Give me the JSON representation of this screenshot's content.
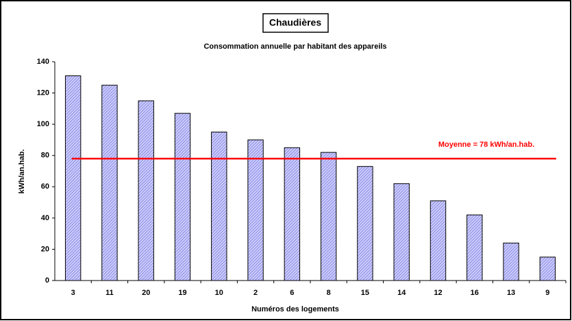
{
  "chart_data": {
    "type": "bar",
    "title": "Chaudières",
    "subtitle": "Consommation annuelle par habitant des appareils",
    "x_label": "Numéros des logements",
    "y_label": "kWh/an.hab.",
    "categories": [
      "3",
      "11",
      "20",
      "19",
      "10",
      "2",
      "6",
      "8",
      "15",
      "14",
      "12",
      "16",
      "13",
      "9"
    ],
    "values": [
      131,
      125,
      115,
      107,
      95,
      90,
      85,
      82,
      73,
      62,
      51,
      42,
      24,
      15
    ],
    "color": "#9999ff",
    "ylim": [
      0,
      140
    ],
    "yticks": [
      0,
      20,
      40,
      60,
      80,
      100,
      120,
      140
    ],
    "grid": false,
    "mean_line": {
      "value": 78,
      "label": "Moyenne = 78 kWh/an.hab.",
      "color": "#ff0000"
    }
  }
}
